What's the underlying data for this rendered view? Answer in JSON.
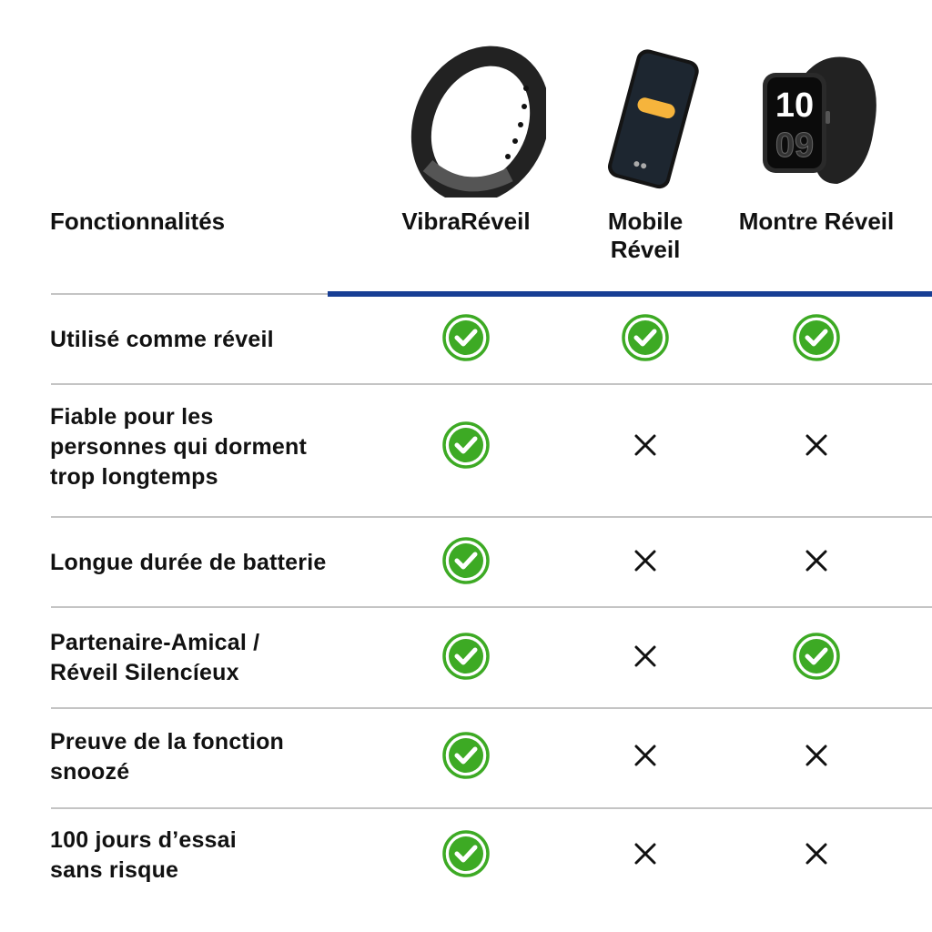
{
  "header": {
    "features_label": "Fonctionnalités",
    "columns": [
      {
        "name": "VibraRéveil",
        "image": "wristband-image"
      },
      {
        "name_line1": "Mobile",
        "name_line2": "Réveil",
        "image": "smartphone-image"
      },
      {
        "name": "Montre Réveil",
        "image": "smartwatch-image",
        "watch_hours": "10",
        "watch_minutes": "09"
      }
    ]
  },
  "colors": {
    "accent_rule": "#173e94",
    "check": "#3daa24",
    "cross": "#111111"
  },
  "rows": [
    {
      "label_lines": [
        "Utilisé comme réveil"
      ],
      "values": [
        "check",
        "check",
        "check"
      ]
    },
    {
      "label_lines": [
        "Fiable pour les",
        "personnes qui dorment",
        "trop longtemps"
      ],
      "values": [
        "check",
        "cross",
        "cross"
      ]
    },
    {
      "label_lines": [
        "Longue durée de batterie"
      ],
      "values": [
        "check",
        "cross",
        "cross"
      ]
    },
    {
      "label_lines": [
        "Partenaire-Amical /",
        "Réveil Silencíeux"
      ],
      "values": [
        "check",
        "cross",
        "check"
      ]
    },
    {
      "label_lines": [
        "Preuve de la fonction",
        "snoozé"
      ],
      "values": [
        "check",
        "cross",
        "cross"
      ]
    },
    {
      "label_lines": [
        "100 jours d’essai",
        "sans risque"
      ],
      "values": [
        "check",
        "cross",
        "cross"
      ]
    }
  ]
}
